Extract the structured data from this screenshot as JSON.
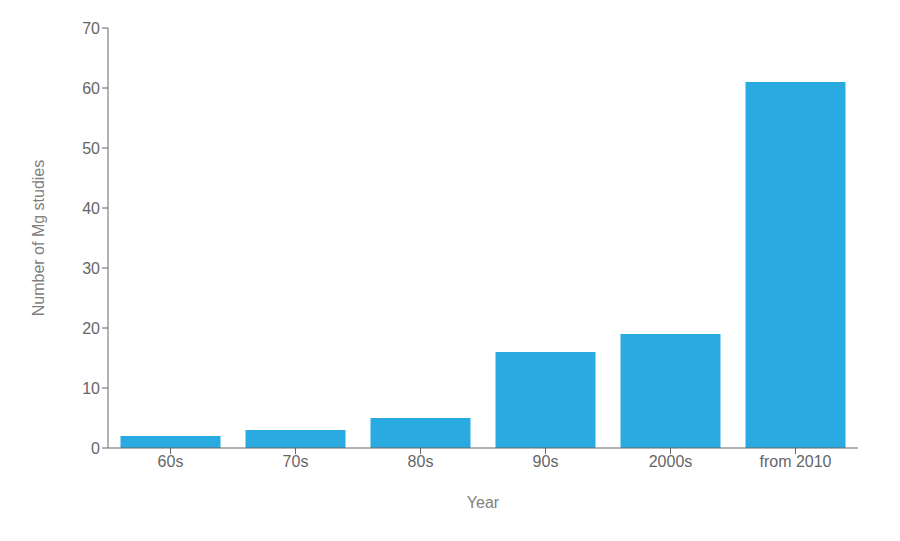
{
  "chart_data": {
    "type": "bar",
    "categories": [
      "60s",
      "70s",
      "80s",
      "90s",
      "2000s",
      "from 2010"
    ],
    "values": [
      2,
      3,
      5,
      16,
      19,
      61
    ],
    "color": "#29ABE2",
    "xlabel": "Year",
    "ylabel": "Number of Mg studies",
    "ylim": [
      0,
      70
    ],
    "yticks": [
      0,
      10,
      20,
      30,
      40,
      50,
      60,
      70
    ],
    "grid": false
  }
}
